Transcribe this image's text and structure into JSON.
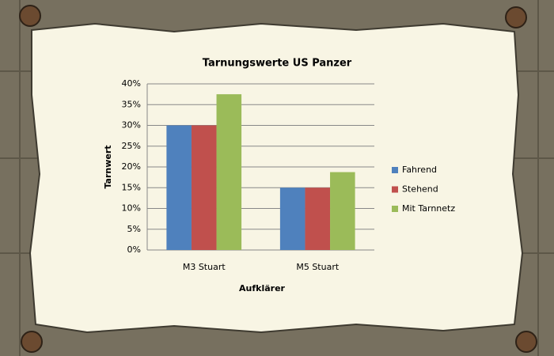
{
  "chart_data": {
    "type": "bar",
    "title": "Tarnungswerte US Panzer",
    "x_label": "Aufklärer",
    "y_label": "Tarnwert",
    "categories": [
      "M3 Stuart",
      "M5 Stuart"
    ],
    "series": [
      {
        "name": "Fahrend",
        "color": "#4f81bd",
        "values": [
          30,
          15
        ]
      },
      {
        "name": "Stehend",
        "color": "#c0504d",
        "values": [
          30,
          15
        ]
      },
      {
        "name": "Mit Tarnnetz",
        "color": "#9bbb59",
        "values": [
          37.5,
          18.75
        ]
      }
    ],
    "ylim": [
      0,
      40
    ],
    "yticks": [
      {
        "value": 0,
        "label": "0%"
      },
      {
        "value": 5,
        "label": "5%"
      },
      {
        "value": 10,
        "label": "10%"
      },
      {
        "value": 15,
        "label": "15%"
      },
      {
        "value": 20,
        "label": "20%"
      },
      {
        "value": 25,
        "label": "25%"
      },
      {
        "value": 30,
        "label": "30%"
      },
      {
        "value": 35,
        "label": "35%"
      },
      {
        "value": 40,
        "label": "40%"
      }
    ],
    "grid": true,
    "legend": "right"
  }
}
